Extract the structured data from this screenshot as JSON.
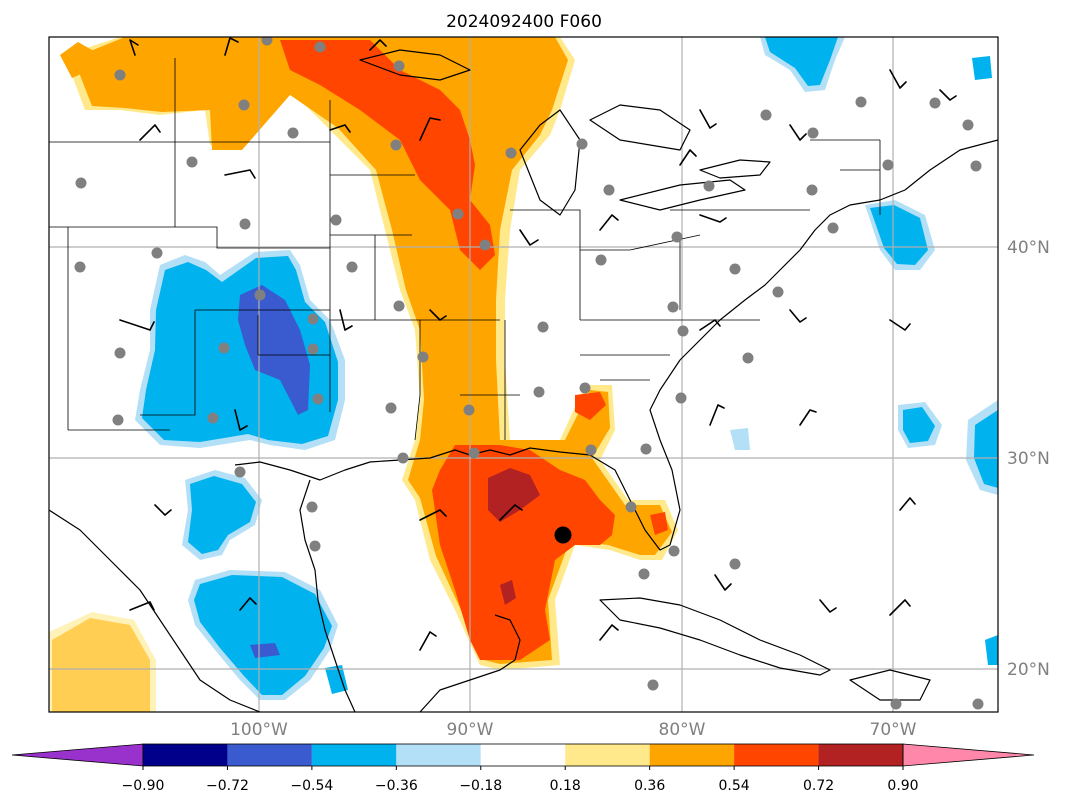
{
  "title": "2024092400 F060",
  "map": {
    "lon_labels": [
      "100°W",
      "90°W",
      "80°W",
      "70°W"
    ],
    "lat_labels": [
      "40°N",
      "30°N",
      "20°N"
    ],
    "marker": "storm-center"
  },
  "colorbar": {
    "ticks": [
      "−0.90",
      "−0.72",
      "−0.54",
      "−0.36",
      "−0.18",
      "0.18",
      "0.36",
      "0.54",
      "0.72",
      "0.90"
    ],
    "colors": [
      "#9932cc",
      "#00008b",
      "#3a5bcf",
      "#00b2ee",
      "#b3e0f7",
      "#ffffff",
      "#ffe98a",
      "#ffa500",
      "#ff4500",
      "#b22222",
      "#ff88aa"
    ],
    "extend": "both"
  },
  "colors": {
    "neg_light": "#b3e0f7",
    "neg_mid": "#00b2ee",
    "neg_strong": "#3a5bcf",
    "pos_light": "#ffe98a",
    "pos_mid": "#ffa500",
    "pos_strong": "#ff4500",
    "pos_max": "#b22222",
    "station": "#808080",
    "grid": "#b0b0b0"
  }
}
